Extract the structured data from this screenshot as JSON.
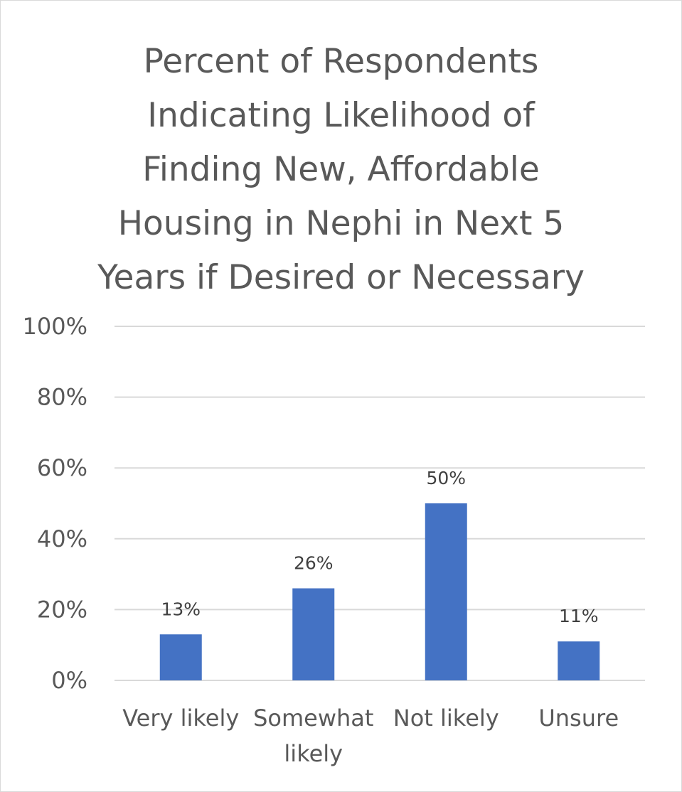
{
  "chart_data": {
    "type": "bar",
    "title_lines": [
      "Percent of Respondents",
      "Indicating Likelihood of",
      "Finding New, Affordable",
      "Housing in Nephi in Next 5",
      "Years if Desired or Necessary"
    ],
    "categories": [
      [
        "Very likely"
      ],
      [
        "Somewhat",
        "likely"
      ],
      [
        "Not likely"
      ],
      [
        "Unsure"
      ]
    ],
    "values": [
      13,
      26,
      50,
      11
    ],
    "data_labels": [
      "13%",
      "26%",
      "50%",
      "11%"
    ],
    "y_ticks": [
      "0%",
      "20%",
      "40%",
      "60%",
      "80%",
      "100%"
    ],
    "y_tick_values": [
      0,
      20,
      40,
      60,
      80,
      100
    ],
    "ylim": [
      0,
      100
    ],
    "grid": true,
    "legend": "none",
    "bar_color": "#4472c4",
    "grid_color": "#d9d9d9",
    "text_color": "#595959"
  }
}
